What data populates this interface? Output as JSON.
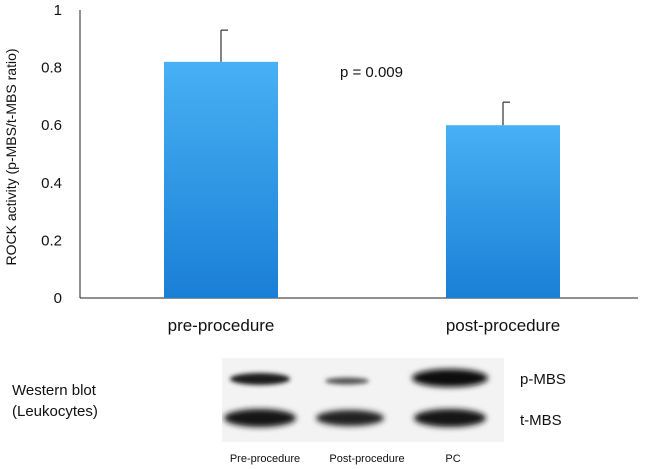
{
  "chart_data": {
    "type": "bar",
    "categories": [
      "pre-procedure",
      "post-procedure"
    ],
    "values": [
      0.82,
      0.6
    ],
    "error_upper": [
      0.93,
      0.68
    ],
    "ylabel": "ROCK activity (p-MBS/t-MBS ratio)",
    "xlabel": "",
    "ylim": [
      0,
      1
    ],
    "yticks": [
      "0",
      "0.2",
      "0.4",
      "0.6",
      "0.8",
      "1"
    ],
    "annotation": "p = 0.009",
    "bar_color": "#2f95e6",
    "grid": false
  },
  "western_blot": {
    "title_line1": "Western blot",
    "title_line2": "(Leukocytes)",
    "bands": [
      "p-MBS",
      "t-MBS"
    ],
    "lanes": [
      "Pre-procedure",
      "Post-procedure",
      "PC"
    ]
  }
}
